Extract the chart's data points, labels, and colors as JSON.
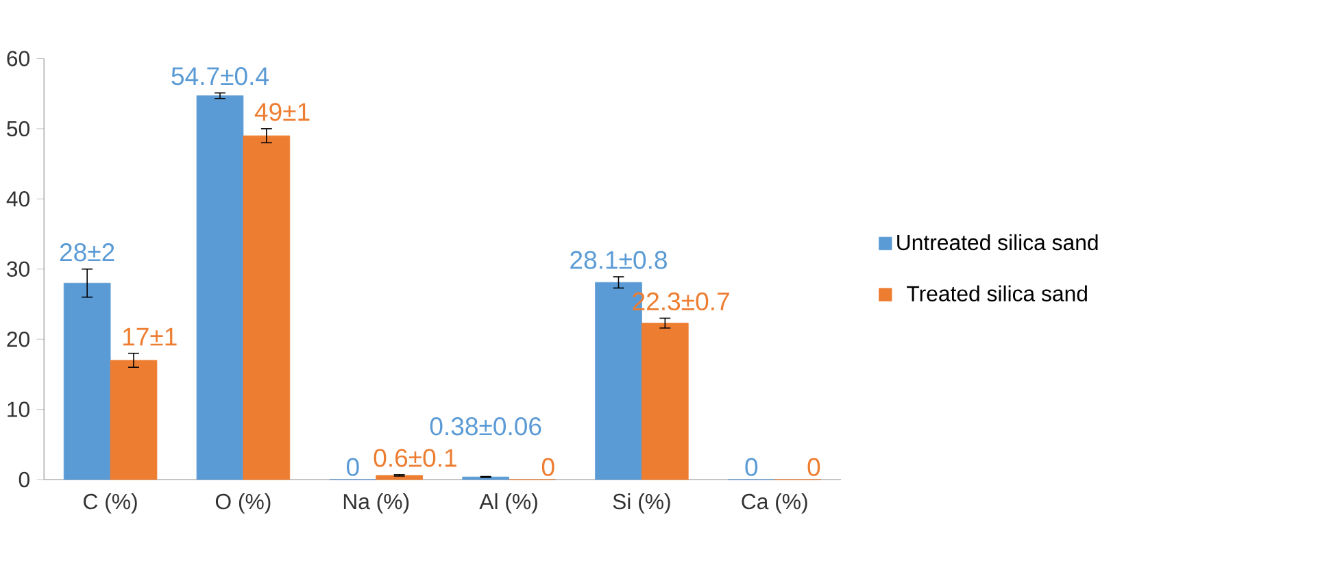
{
  "chart_data": {
    "type": "bar",
    "categories": [
      "C (%)",
      "O (%)",
      "Na (%)",
      "Al (%)",
      "Si (%)",
      "Ca (%)"
    ],
    "series": [
      {
        "name": "Untreated silica sand",
        "color": "#5b9bd5",
        "values": [
          28,
          54.7,
          0,
          0.38,
          28.1,
          0
        ],
        "errors": [
          2,
          0.4,
          null,
          0.06,
          0.8,
          null
        ],
        "value_labels": [
          "28±2",
          "54.7±0.4",
          "0",
          "0.38±0.06",
          "28.1±0.8",
          "0"
        ]
      },
      {
        "name": "Treated silica sand",
        "color": "#ed7d31",
        "values": [
          17,
          49,
          0.6,
          0,
          22.3,
          0
        ],
        "errors": [
          1,
          1,
          0.1,
          null,
          0.7,
          null
        ],
        "value_labels": [
          "17±1",
          "49±1",
          "0.6±0.1",
          "0",
          "22.3±0.7",
          "0"
        ]
      }
    ],
    "ylim": [
      0,
      60
    ],
    "yticks": [
      0,
      10,
      20,
      30,
      40,
      50,
      60
    ],
    "grid": false,
    "legend": "right"
  }
}
